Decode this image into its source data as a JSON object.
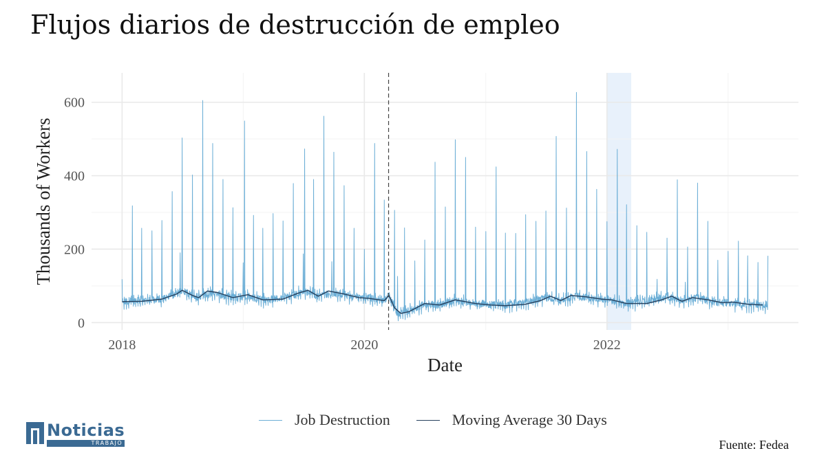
{
  "title": "Flujos diarios de destrucción de empleo",
  "source": "Fuente: Fedea",
  "logo": {
    "name": "Noticias",
    "sub": "TRABAJO"
  },
  "legend": [
    {
      "label": "Job Destruction",
      "color": "#6baed6"
    },
    {
      "label": "Moving Average 30 Days",
      "color": "#253f5c"
    }
  ],
  "chart_data": {
    "type": "line",
    "xlabel": "Date",
    "ylabel": "Thousands of Workers",
    "xlim": [
      "2017-10-01",
      "2023-08-01"
    ],
    "ylim": [
      -20,
      680
    ],
    "x_ticks": [
      "2018",
      "2020",
      "2022"
    ],
    "y_ticks": [
      0,
      200,
      400,
      600
    ],
    "grid": true,
    "legend_position": "bottom",
    "vline": {
      "x": "2020-03-14",
      "style": "dashed"
    },
    "highlight": {
      "x_from": "2022-01-01",
      "x_to": "2022-03-15"
    },
    "series": [
      {
        "name": "Job Destruction",
        "color": "#6baed6",
        "baseline": [
          [
            "2018-01-01",
            58
          ],
          [
            "2018-03-01",
            60
          ],
          [
            "2018-05-01",
            66
          ],
          [
            "2018-07-01",
            85
          ],
          [
            "2018-08-15",
            70
          ],
          [
            "2018-10-01",
            80
          ],
          [
            "2018-12-01",
            68
          ],
          [
            "2019-01-15",
            72
          ],
          [
            "2019-03-01",
            62
          ],
          [
            "2019-05-01",
            66
          ],
          [
            "2019-07-01",
            85
          ],
          [
            "2019-08-15",
            72
          ],
          [
            "2019-10-01",
            80
          ],
          [
            "2019-12-01",
            70
          ],
          [
            "2020-01-15",
            68
          ],
          [
            "2020-03-01",
            62
          ],
          [
            "2020-03-14",
            72
          ],
          [
            "2020-04-10",
            25
          ],
          [
            "2020-05-15",
            32
          ],
          [
            "2020-07-01",
            50
          ],
          [
            "2020-08-15",
            48
          ],
          [
            "2020-10-01",
            60
          ],
          [
            "2020-12-01",
            52
          ],
          [
            "2021-01-15",
            50
          ],
          [
            "2021-03-01",
            48
          ],
          [
            "2021-05-01",
            55
          ],
          [
            "2021-07-01",
            70
          ],
          [
            "2021-08-15",
            60
          ],
          [
            "2021-10-01",
            72
          ],
          [
            "2021-12-01",
            65
          ],
          [
            "2022-01-15",
            62
          ],
          [
            "2022-03-01",
            52
          ],
          [
            "2022-05-01",
            58
          ],
          [
            "2022-07-01",
            70
          ],
          [
            "2022-08-15",
            60
          ],
          [
            "2022-10-01",
            68
          ],
          [
            "2022-12-01",
            55
          ],
          [
            "2023-01-15",
            52
          ],
          [
            "2023-03-01",
            48
          ],
          [
            "2023-04-15",
            48
          ]
        ],
        "spikes": [
          [
            "2018-01-01",
            118
          ],
          [
            "2018-02-01",
            318
          ],
          [
            "2018-03-01",
            257
          ],
          [
            "2018-04-01",
            250
          ],
          [
            "2018-05-01",
            278
          ],
          [
            "2018-06-01",
            357
          ],
          [
            "2018-06-25",
            190
          ],
          [
            "2018-07-01",
            503
          ],
          [
            "2018-08-01",
            402
          ],
          [
            "2018-09-01",
            605
          ],
          [
            "2018-10-01",
            488
          ],
          [
            "2018-11-01",
            390
          ],
          [
            "2018-12-01",
            313
          ],
          [
            "2019-01-01",
            163
          ],
          [
            "2019-01-05",
            549
          ],
          [
            "2019-02-01",
            292
          ],
          [
            "2019-03-01",
            257
          ],
          [
            "2019-04-01",
            297
          ],
          [
            "2019-05-01",
            277
          ],
          [
            "2019-06-01",
            379
          ],
          [
            "2019-07-01",
            187
          ],
          [
            "2019-07-05",
            473
          ],
          [
            "2019-08-01",
            390
          ],
          [
            "2019-09-01",
            562
          ],
          [
            "2019-09-25",
            166
          ],
          [
            "2019-10-01",
            464
          ],
          [
            "2019-11-01",
            373
          ],
          [
            "2019-12-01",
            257
          ],
          [
            "2020-01-01",
            200
          ],
          [
            "2020-02-01",
            488
          ],
          [
            "2020-03-01",
            334
          ],
          [
            "2020-04-01",
            306
          ],
          [
            "2020-04-10",
            126
          ],
          [
            "2020-05-01",
            258
          ],
          [
            "2020-06-01",
            168
          ],
          [
            "2020-07-01",
            225
          ],
          [
            "2020-08-01",
            437
          ],
          [
            "2020-09-01",
            315
          ],
          [
            "2020-10-01",
            498
          ],
          [
            "2020-11-01",
            450
          ],
          [
            "2020-12-01",
            260
          ],
          [
            "2021-01-01",
            248
          ],
          [
            "2021-02-01",
            424
          ],
          [
            "2021-03-01",
            244
          ],
          [
            "2021-04-01",
            243
          ],
          [
            "2021-05-01",
            294
          ],
          [
            "2021-06-01",
            276
          ],
          [
            "2021-07-01",
            304
          ],
          [
            "2021-08-01",
            507
          ],
          [
            "2021-09-01",
            312
          ],
          [
            "2021-10-01",
            627
          ],
          [
            "2021-11-01",
            466
          ],
          [
            "2021-12-01",
            363
          ],
          [
            "2022-01-01",
            275
          ],
          [
            "2022-02-01",
            472
          ],
          [
            "2022-03-01",
            321
          ],
          [
            "2022-04-01",
            264
          ],
          [
            "2022-05-01",
            246
          ],
          [
            "2022-06-01",
            118
          ],
          [
            "2022-07-01",
            230
          ],
          [
            "2022-08-01",
            389
          ],
          [
            "2022-08-25",
            110
          ],
          [
            "2022-09-01",
            206
          ],
          [
            "2022-10-01",
            380
          ],
          [
            "2022-11-01",
            276
          ],
          [
            "2022-12-01",
            170
          ],
          [
            "2023-01-01",
            194
          ],
          [
            "2023-02-01",
            222
          ],
          [
            "2023-03-01",
            182
          ],
          [
            "2023-04-01",
            164
          ],
          [
            "2023-05-01",
            182
          ]
        ]
      },
      {
        "name": "Moving Average 30 Days",
        "color": "#253f5c",
        "values": [
          [
            "2018-01-01",
            57
          ],
          [
            "2018-03-01",
            58
          ],
          [
            "2018-05-01",
            64
          ],
          [
            "2018-06-15",
            78
          ],
          [
            "2018-07-01",
            88
          ],
          [
            "2018-08-01",
            74
          ],
          [
            "2018-08-20",
            68
          ],
          [
            "2018-09-15",
            86
          ],
          [
            "2018-10-15",
            82
          ],
          [
            "2018-12-01",
            68
          ],
          [
            "2019-01-15",
            76
          ],
          [
            "2019-03-01",
            62
          ],
          [
            "2019-05-01",
            64
          ],
          [
            "2019-06-15",
            80
          ],
          [
            "2019-07-15",
            88
          ],
          [
            "2019-08-15",
            72
          ],
          [
            "2019-09-15",
            86
          ],
          [
            "2019-11-01",
            78
          ],
          [
            "2019-12-15",
            68
          ],
          [
            "2020-01-15",
            66
          ],
          [
            "2020-03-01",
            60
          ],
          [
            "2020-03-15",
            74
          ],
          [
            "2020-04-01",
            40
          ],
          [
            "2020-04-20",
            25
          ],
          [
            "2020-05-15",
            30
          ],
          [
            "2020-07-01",
            52
          ],
          [
            "2020-08-15",
            48
          ],
          [
            "2020-10-01",
            62
          ],
          [
            "2020-12-01",
            52
          ],
          [
            "2021-01-15",
            48
          ],
          [
            "2021-03-01",
            46
          ],
          [
            "2021-05-01",
            50
          ],
          [
            "2021-06-15",
            60
          ],
          [
            "2021-07-15",
            72
          ],
          [
            "2021-08-15",
            60
          ],
          [
            "2021-09-15",
            74
          ],
          [
            "2021-11-01",
            70
          ],
          [
            "2021-12-15",
            64
          ],
          [
            "2022-01-15",
            62
          ],
          [
            "2022-03-01",
            52
          ],
          [
            "2022-05-01",
            52
          ],
          [
            "2022-06-15",
            62
          ],
          [
            "2022-07-15",
            72
          ],
          [
            "2022-08-15",
            58
          ],
          [
            "2022-09-15",
            68
          ],
          [
            "2022-11-01",
            62
          ],
          [
            "2022-12-15",
            54
          ],
          [
            "2023-01-15",
            56
          ],
          [
            "2023-03-01",
            50
          ],
          [
            "2023-04-15",
            48
          ]
        ]
      }
    ]
  }
}
